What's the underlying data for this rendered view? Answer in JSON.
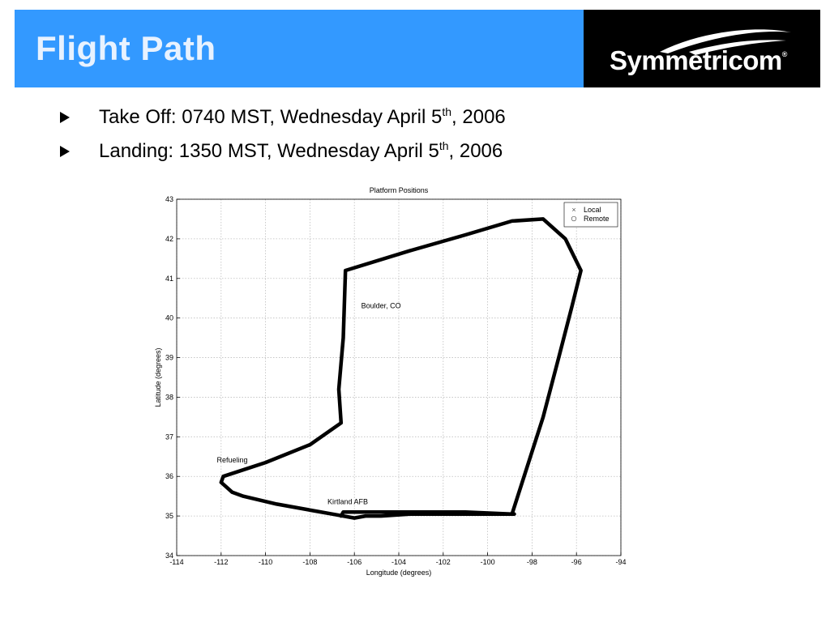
{
  "header": {
    "title": "Flight Path",
    "logo_text": "Symmetricom",
    "logo_mark": "®"
  },
  "bullets": [
    {
      "pre": "Take Off:  0740 MST, Wednesday April 5",
      "sup": "th",
      "post": ", 2006"
    },
    {
      "pre": "Landing:  1350 MST, Wednesday April 5",
      "sup": "th",
      "post": ", 2006"
    }
  ],
  "colors": {
    "banner": "#3399ff",
    "banner_title": "#e8f2ff",
    "logo_bg": "#000000",
    "path": "#000000"
  },
  "chart_data": {
    "type": "line",
    "title": "Platform Positions",
    "xlabel": "Longitude (degrees)",
    "ylabel": "Latitude (degrees)",
    "xlim": [
      -114,
      -94
    ],
    "ylim": [
      34,
      43
    ],
    "xticks": [
      -114,
      -112,
      -110,
      -108,
      -106,
      -104,
      -102,
      -100,
      -98,
      -96,
      -94
    ],
    "yticks": [
      34,
      35,
      36,
      37,
      38,
      39,
      40,
      41,
      42,
      43
    ],
    "grid": true,
    "legend_position": "top-right",
    "legend": [
      {
        "label": "Local",
        "marker": "x"
      },
      {
        "label": "Remote",
        "marker": "o"
      }
    ],
    "series": [
      {
        "x": [
          -106.6,
          -106.5,
          -104.0,
          -101.0,
          -98.9,
          -97.5,
          -96.8,
          -96.2,
          -95.8,
          -96.5,
          -97.5,
          -98.9,
          -101.0,
          -103.5,
          -106.4,
          -106.5,
          -106.7,
          -106.6,
          -108.0,
          -110.0,
          -111.9,
          -112.0,
          -111.8,
          -111.5,
          -111.0,
          -109.5,
          -107.0,
          -106.0,
          -105.5,
          -105.0,
          -104.8,
          -104.8,
          -103.5,
          -101.5,
          -99.5,
          -98.8
        ],
        "y": [
          35.0,
          35.1,
          35.1,
          35.1,
          35.05,
          37.5,
          39.0,
          40.3,
          41.2,
          42.0,
          42.5,
          42.45,
          42.1,
          41.7,
          41.2,
          39.5,
          38.2,
          37.35,
          36.8,
          36.35,
          36.0,
          35.85,
          35.75,
          35.6,
          35.5,
          35.3,
          35.05,
          34.95,
          35.0,
          35.0,
          35.0,
          35.0,
          35.05,
          35.05,
          35.05,
          35.05
        ]
      }
    ],
    "annotations": [
      {
        "text": "Boulder, CO",
        "x": -104.8,
        "y": 40.25
      },
      {
        "text": "Refueling",
        "x": -111.5,
        "y": 36.35
      },
      {
        "text": "Kirtland AFB",
        "x": -106.3,
        "y": 35.3
      }
    ]
  }
}
